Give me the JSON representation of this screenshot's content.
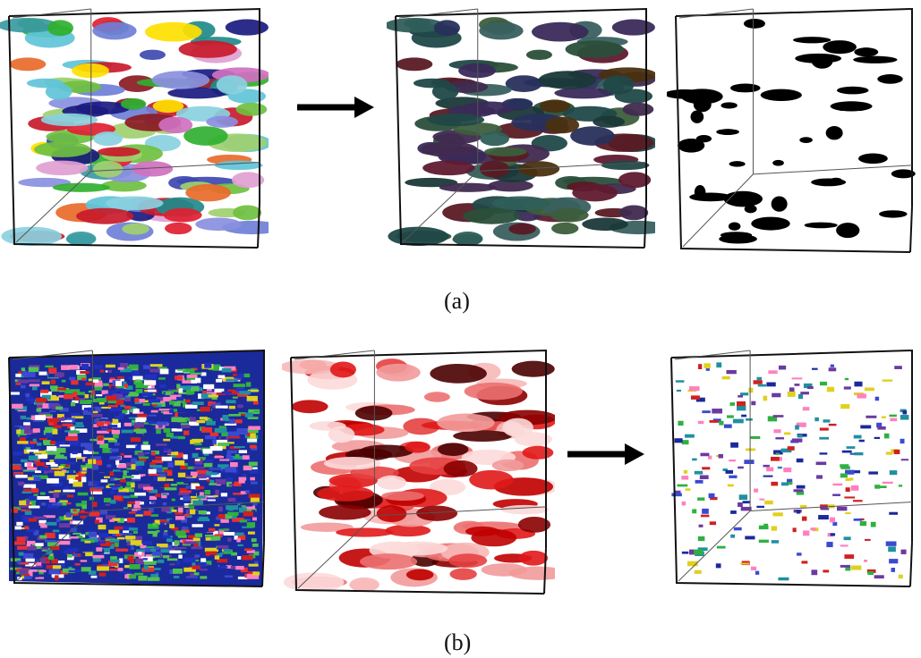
{
  "rows": [
    {
      "caption": "(a)",
      "panels": [
        {
          "id": "a1",
          "style": "multicolor-ellipsoids",
          "palette": [
            "#5fc4d8",
            "#8ad0e0",
            "#3a9aa0",
            "#1f8a8a",
            "#6f7fd6",
            "#8a8fe0",
            "#3d49b0",
            "#c81a2a",
            "#e02030",
            "#8a1a22",
            "#30b030",
            "#6fc040",
            "#a0d070",
            "#e86a2a",
            "#e0a0d0",
            "#d070c0",
            "#ffe000",
            "#1a1a80"
          ]
        },
        {
          "id": "a2",
          "style": "dark-ellipsoids",
          "palette": [
            "#204848",
            "#2f5f5a",
            "#3a6060",
            "#1a3838",
            "#2a4f3a",
            "#3c5e3c",
            "#28305c",
            "#402a50",
            "#5a1a24",
            "#601a30",
            "#4a3010",
            "#3a2a5a"
          ]
        },
        {
          "id": "a3",
          "style": "binary-mask",
          "palette": [
            "#000000"
          ]
        }
      ]
    },
    {
      "caption": "(b)",
      "panels": [
        {
          "id": "b1",
          "style": "dense-multicolor",
          "palette": [
            "#1a2a9a",
            "#2030c0",
            "#3a4ad0",
            "#d02020",
            "#e83030",
            "#30b040",
            "#50c050",
            "#2090a0",
            "#6a3aa0",
            "#e0d020",
            "#ff80c0",
            "#ffffff"
          ]
        },
        {
          "id": "b2",
          "style": "red-shades",
          "palette": [
            "#fcdada",
            "#f7b8b8",
            "#f29a9a",
            "#ec7070",
            "#e64040",
            "#e01818",
            "#c00000",
            "#8a0000",
            "#4a0000"
          ]
        },
        {
          "id": "b3",
          "style": "sparse-multicolor",
          "palette": [
            "#1a2a9a",
            "#3a4ad0",
            "#d02020",
            "#30b040",
            "#2090a0",
            "#6a3aa0",
            "#e0d020",
            "#ff80c0"
          ]
        }
      ]
    }
  ]
}
